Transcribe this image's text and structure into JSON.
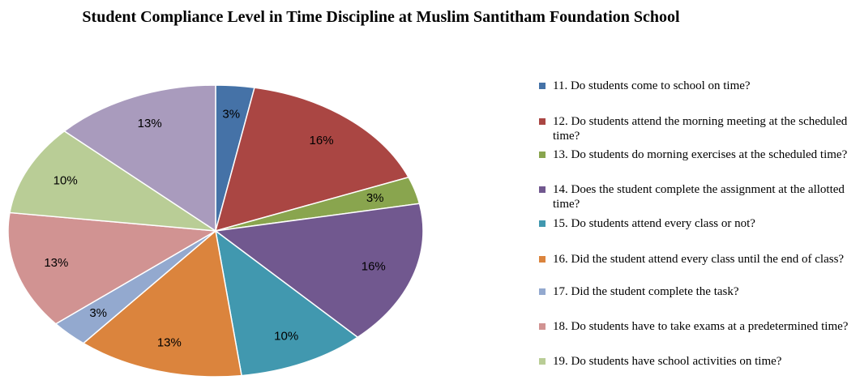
{
  "chart_data": {
    "type": "pie",
    "title": "Student Compliance Level in Time Discipline at Muslim Santitham Foundation School",
    "categories": [
      "11. Do students come to school on time?",
      "12. Do students attend the morning meeting at the scheduled time?",
      "13. Do students do morning exercises at the scheduled time?",
      "14. Does the student complete the assignment at the allotted time?",
      "15. Do students attend every class or not?",
      "16. Did the student attend every class until the end of class?",
      "17. Did the student complete the task?",
      "18. Do students have to take exams at a predetermined time?",
      "19. Do students have school activities on time?",
      null
    ],
    "values": [
      3,
      16,
      3,
      16,
      10,
      13,
      3,
      13,
      10,
      13
    ],
    "value_labels": [
      "3%",
      "16%",
      "3%",
      "16%",
      "10%",
      "13%",
      "3%",
      "13%",
      "10%",
      "13%"
    ],
    "colors": [
      "#4572a7",
      "#aa4643",
      "#89a54e",
      "#71588f",
      "#4198af",
      "#db843d",
      "#93a9cf",
      "#d19392",
      "#b9cd96",
      "#a99bbd"
    ]
  }
}
